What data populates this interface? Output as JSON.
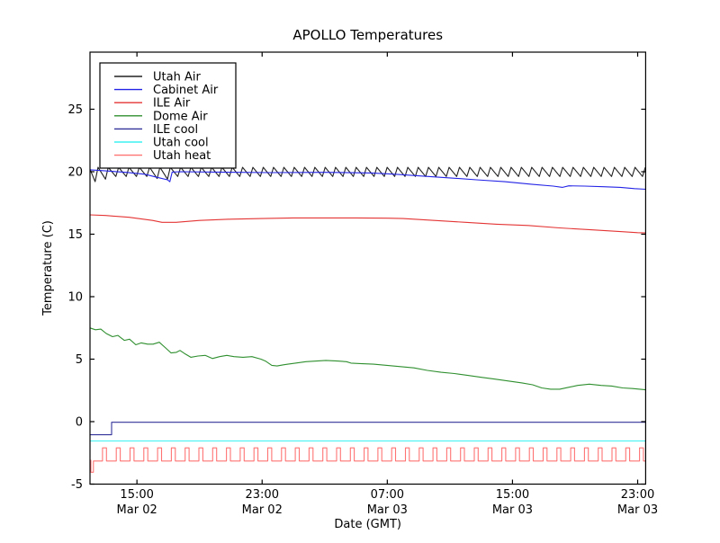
{
  "title": "APOLLO Temperatures",
  "chart_data": {
    "type": "line",
    "title": "APOLLO Temperatures",
    "xlabel": "Date (GMT)",
    "ylabel": "Temperature (C)",
    "x_unit": "hours after 12:00 Mar 02 (GMT)",
    "xlim": [
      0,
      35.51
    ],
    "ylim": [
      -5,
      29.6
    ],
    "grid": false,
    "legend_position": "upper left",
    "y_ticks": [
      -5,
      0,
      5,
      10,
      15,
      20,
      25
    ],
    "x_ticks": [
      {
        "t": 3,
        "line1": "15:00",
        "line2": "Mar 02"
      },
      {
        "t": 11,
        "line1": "23:00",
        "line2": "Mar 02"
      },
      {
        "t": 19,
        "line1": "07:00",
        "line2": "Mar 03"
      },
      {
        "t": 27,
        "line1": "15:00",
        "line2": "Mar 03"
      },
      {
        "t": 35,
        "line1": "23:00",
        "line2": "Mar 03"
      }
    ],
    "series": [
      {
        "name": "Utah Air",
        "color": "#222222",
        "pattern": {
          "kind": "sawtooth",
          "t_start": 0,
          "t_end": 35.51,
          "start_value": 20.2,
          "trough_offset_h": 0.33,
          "period_h": 0.66,
          "rise_h": 0.18,
          "trough": 19.62,
          "peak": 20.35,
          "deep_troughs": [
            {
              "k": 0,
              "value": 19.2
            },
            {
              "k": 1,
              "value": 19.4
            },
            {
              "k": 6,
              "value": 19.45
            },
            {
              "k": 7,
              "value": 19.4
            }
          ]
        }
      },
      {
        "name": "Cabinet Air",
        "color": "#2323e6",
        "points": [
          [
            0,
            20.15
          ],
          [
            0.6,
            20.1
          ],
          [
            2.3,
            19.95
          ],
          [
            3.5,
            19.8
          ],
          [
            4.3,
            19.55
          ],
          [
            4.95,
            19.35
          ],
          [
            5.1,
            19.2
          ],
          [
            5.25,
            19.97
          ],
          [
            5.75,
            20
          ],
          [
            8,
            19.97
          ],
          [
            11.5,
            19.93
          ],
          [
            15,
            19.95
          ],
          [
            18,
            19.9
          ],
          [
            19.5,
            19.8
          ],
          [
            21.3,
            19.65
          ],
          [
            23,
            19.5
          ],
          [
            24.7,
            19.35
          ],
          [
            26.5,
            19.2
          ],
          [
            28.2,
            19
          ],
          [
            29.6,
            18.85
          ],
          [
            30.2,
            18.75
          ],
          [
            30.6,
            18.87
          ],
          [
            31.6,
            18.85
          ],
          [
            32.8,
            18.8
          ],
          [
            33.9,
            18.75
          ],
          [
            34.8,
            18.65
          ],
          [
            35.51,
            18.6
          ]
        ]
      },
      {
        "name": "ILE Air",
        "color": "#e43434",
        "points": [
          [
            0,
            16.55
          ],
          [
            1,
            16.5
          ],
          [
            2.5,
            16.35
          ],
          [
            4,
            16.1
          ],
          [
            4.6,
            15.95
          ],
          [
            5.5,
            15.95
          ],
          [
            7,
            16.1
          ],
          [
            9,
            16.2
          ],
          [
            11,
            16.25
          ],
          [
            13,
            16.3
          ],
          [
            17,
            16.3
          ],
          [
            19,
            16.28
          ],
          [
            20,
            16.25
          ],
          [
            22,
            16.1
          ],
          [
            24,
            15.95
          ],
          [
            26,
            15.8
          ],
          [
            28,
            15.7
          ],
          [
            30,
            15.5
          ],
          [
            32,
            15.35
          ],
          [
            34,
            15.2
          ],
          [
            35,
            15.12
          ],
          [
            35.51,
            15.1
          ]
        ]
      },
      {
        "name": "Dome Air",
        "color": "#2f8f2f",
        "points": [
          [
            0,
            7.5
          ],
          [
            0.35,
            7.35
          ],
          [
            0.69,
            7.4
          ],
          [
            1.04,
            7.05
          ],
          [
            1.44,
            6.8
          ],
          [
            1.78,
            6.9
          ],
          [
            2.19,
            6.5
          ],
          [
            2.53,
            6.6
          ],
          [
            2.93,
            6.15
          ],
          [
            3.28,
            6.3
          ],
          [
            3.68,
            6.2
          ],
          [
            4.03,
            6.2
          ],
          [
            4.43,
            6.35
          ],
          [
            4.83,
            5.9
          ],
          [
            5.18,
            5.5
          ],
          [
            5.52,
            5.55
          ],
          [
            5.75,
            5.7
          ],
          [
            6.1,
            5.4
          ],
          [
            6.44,
            5.15
          ],
          [
            6.9,
            5.25
          ],
          [
            7.36,
            5.3
          ],
          [
            7.82,
            5.05
          ],
          [
            8.28,
            5.2
          ],
          [
            8.74,
            5.3
          ],
          [
            9.2,
            5.2
          ],
          [
            9.78,
            5.15
          ],
          [
            10.35,
            5.2
          ],
          [
            10.93,
            5.0
          ],
          [
            11.21,
            4.85
          ],
          [
            11.62,
            4.5
          ],
          [
            11.96,
            4.45
          ],
          [
            12.36,
            4.55
          ],
          [
            12.65,
            4.6
          ],
          [
            13.23,
            4.7
          ],
          [
            13.8,
            4.8
          ],
          [
            14.49,
            4.85
          ],
          [
            15.07,
            4.9
          ],
          [
            15.81,
            4.85
          ],
          [
            16.39,
            4.8
          ],
          [
            16.68,
            4.68
          ],
          [
            17.25,
            4.65
          ],
          [
            18.11,
            4.6
          ],
          [
            18.98,
            4.5
          ],
          [
            19.84,
            4.4
          ],
          [
            20.7,
            4.3
          ],
          [
            21.56,
            4.1
          ],
          [
            22.43,
            3.95
          ],
          [
            23.29,
            3.85
          ],
          [
            24.15,
            3.7
          ],
          [
            25.01,
            3.55
          ],
          [
            25.88,
            3.4
          ],
          [
            26.74,
            3.25
          ],
          [
            27.6,
            3.1
          ],
          [
            28.29,
            2.95
          ],
          [
            28.87,
            2.7
          ],
          [
            29.44,
            2.6
          ],
          [
            30.02,
            2.6
          ],
          [
            30.59,
            2.75
          ],
          [
            31.17,
            2.9
          ],
          [
            31.91,
            3.0
          ],
          [
            32.66,
            2.9
          ],
          [
            33.35,
            2.85
          ],
          [
            34.04,
            2.7
          ],
          [
            34.68,
            2.65
          ],
          [
            35.51,
            2.55
          ]
        ]
      },
      {
        "name": "ILE cool",
        "color": "#32329a",
        "points": [
          [
            0,
            -1.05
          ],
          [
            1.38,
            -1.05
          ],
          [
            1.38,
            -0.05
          ],
          [
            35.51,
            -0.05
          ]
        ]
      },
      {
        "name": "Utah cool",
        "color": "#3df2f2",
        "points": [
          [
            0,
            -1.55
          ],
          [
            35.51,
            -1.55
          ]
        ]
      },
      {
        "name": "Utah heat",
        "color": "#ff7373",
        "pattern": {
          "kind": "pulse",
          "t_end": 35.51,
          "first_rise_h": 0.8,
          "period_h": 0.88,
          "width_h": 0.25,
          "low": -3.15,
          "high": -2.1,
          "intro": [
            [
              0,
              -3.1
            ],
            [
              0.06,
              -3.1
            ],
            [
              0.06,
              -4.05
            ],
            [
              0.22,
              -4.05
            ],
            [
              0.22,
              -3.15
            ]
          ]
        }
      }
    ]
  }
}
